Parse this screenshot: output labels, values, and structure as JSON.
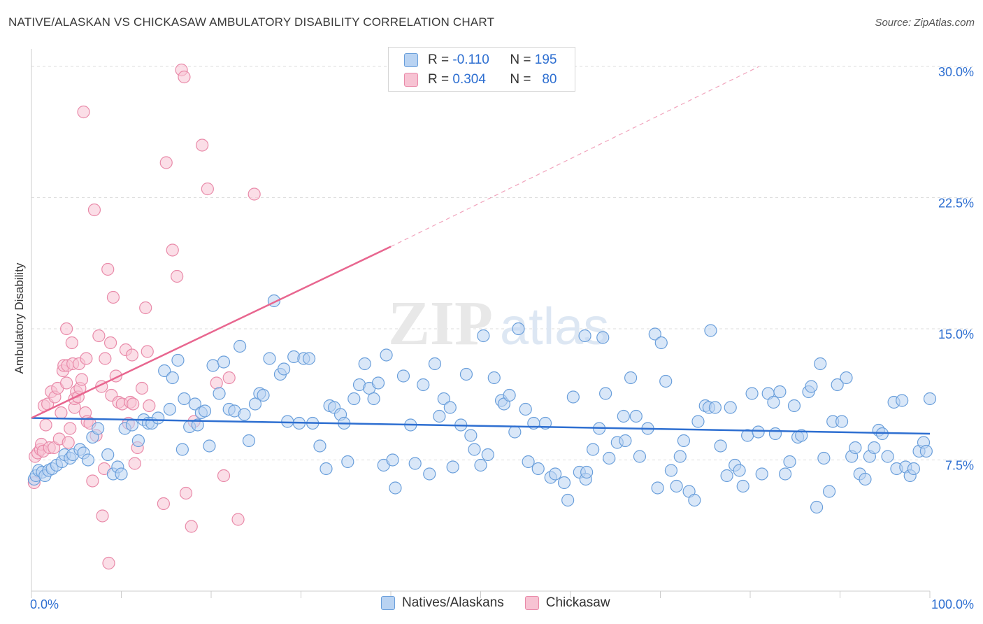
{
  "title": "NATIVE/ALASKAN VS CHICKASAW AMBULATORY DISABILITY CORRELATION CHART",
  "source": "Source: ZipAtlas.com",
  "watermark": {
    "zip": "ZIP",
    "atlas": "atlas"
  },
  "legend": {
    "r_label": "R =",
    "n_label": "N =",
    "series1": {
      "r": "-0.110",
      "n": "195"
    },
    "series2": {
      "r": "0.304",
      "n": "80"
    }
  },
  "colors": {
    "blue_fill": "#b9d3f2",
    "blue_stroke": "#6a9fdb",
    "blue_line": "#2e6fd1",
    "pink_fill": "#f7c3d3",
    "pink_stroke": "#e98aa9",
    "pink_line": "#e8668f",
    "axis_text": "#2e6fd1",
    "grid": "#dddddd"
  },
  "chart_data": {
    "type": "scatter",
    "title": "NATIVE/ALASKAN VS CHICKASAW AMBULATORY DISABILITY CORRELATION CHART",
    "xlabel": "",
    "ylabel": "Ambulatory Disability",
    "xlim": [
      0,
      100
    ],
    "ylim": [
      0,
      31
    ],
    "x_tick_labels": [
      "0.0%",
      "100.0%"
    ],
    "y_ticks": [
      7.5,
      15.0,
      22.5,
      30.0
    ],
    "y_tick_labels": [
      "7.5%",
      "15.0%",
      "22.5%",
      "30.0%"
    ],
    "series": [
      {
        "name": "Natives/Alaskans",
        "R": -0.11,
        "N": 195,
        "trend": {
          "x": [
            0,
            100
          ],
          "y": [
            9.9,
            9.0
          ],
          "dashed_from": null
        },
        "points": [
          [
            0.3,
            6.4
          ],
          [
            0.5,
            6.6
          ],
          [
            0.8,
            6.9
          ],
          [
            1.2,
            6.8
          ],
          [
            1.5,
            6.6
          ],
          [
            1.9,
            6.9
          ],
          [
            2.3,
            7.0
          ],
          [
            2.8,
            7.2
          ],
          [
            3.4,
            7.4
          ],
          [
            3.7,
            7.8
          ],
          [
            4.3,
            7.6
          ],
          [
            4.6,
            7.8
          ],
          [
            5.4,
            8.1
          ],
          [
            5.8,
            7.9
          ],
          [
            6.3,
            7.5
          ],
          [
            6.8,
            8.8
          ],
          [
            7.4,
            9.3
          ],
          [
            8.5,
            7.8
          ],
          [
            9.1,
            6.7
          ],
          [
            9.6,
            7.1
          ],
          [
            10.0,
            6.7
          ],
          [
            10.4,
            9.3
          ],
          [
            11.2,
            9.5
          ],
          [
            11.9,
            8.6
          ],
          [
            12.5,
            9.8
          ],
          [
            13.0,
            9.6
          ],
          [
            13.4,
            9.6
          ],
          [
            14.1,
            9.9
          ],
          [
            14.8,
            12.6
          ],
          [
            15.4,
            10.4
          ],
          [
            15.7,
            12.2
          ],
          [
            16.3,
            13.2
          ],
          [
            16.8,
            8.1
          ],
          [
            17.0,
            11.0
          ],
          [
            17.6,
            9.4
          ],
          [
            18.2,
            10.7
          ],
          [
            18.5,
            9.5
          ],
          [
            18.9,
            10.2
          ],
          [
            19.3,
            10.3
          ],
          [
            19.8,
            8.3
          ],
          [
            20.2,
            12.9
          ],
          [
            20.9,
            11.3
          ],
          [
            21.4,
            13.1
          ],
          [
            22.0,
            10.4
          ],
          [
            22.6,
            10.3
          ],
          [
            23.2,
            14.0
          ],
          [
            23.7,
            10.1
          ],
          [
            24.2,
            8.6
          ],
          [
            24.9,
            10.7
          ],
          [
            25.4,
            11.3
          ],
          [
            25.8,
            11.2
          ],
          [
            26.5,
            13.3
          ],
          [
            27.0,
            16.6
          ],
          [
            27.7,
            12.4
          ],
          [
            28.1,
            12.7
          ],
          [
            28.5,
            9.7
          ],
          [
            29.2,
            13.4
          ],
          [
            29.8,
            9.6
          ],
          [
            30.3,
            13.3
          ],
          [
            30.9,
            13.3
          ],
          [
            31.3,
            9.6
          ],
          [
            32.1,
            8.3
          ],
          [
            32.8,
            7.0
          ],
          [
            33.2,
            10.6
          ],
          [
            33.7,
            10.5
          ],
          [
            34.4,
            10.1
          ],
          [
            34.8,
            9.6
          ],
          [
            35.2,
            7.4
          ],
          [
            35.9,
            11.0
          ],
          [
            36.5,
            11.8
          ],
          [
            37.1,
            13.0
          ],
          [
            37.6,
            11.6
          ],
          [
            38.1,
            11.0
          ],
          [
            38.6,
            11.9
          ],
          [
            39.5,
            13.5
          ],
          [
            39.2,
            7.2
          ],
          [
            40.2,
            7.5
          ],
          [
            40.5,
            5.9
          ],
          [
            41.4,
            12.3
          ],
          [
            42.2,
            9.5
          ],
          [
            42.7,
            7.3
          ],
          [
            43.6,
            11.8
          ],
          [
            44.3,
            6.7
          ],
          [
            44.9,
            13.0
          ],
          [
            45.4,
            10.0
          ],
          [
            45.9,
            11.0
          ],
          [
            46.6,
            10.5
          ],
          [
            46.9,
            7.1
          ],
          [
            47.8,
            9.5
          ],
          [
            48.4,
            12.4
          ],
          [
            48.9,
            8.9
          ],
          [
            49.3,
            8.1
          ],
          [
            50.0,
            7.2
          ],
          [
            50.3,
            14.6
          ],
          [
            50.8,
            7.8
          ],
          [
            51.5,
            12.2
          ],
          [
            52.3,
            10.9
          ],
          [
            52.6,
            10.7
          ],
          [
            53.2,
            11.2
          ],
          [
            53.8,
            9.1
          ],
          [
            54.2,
            15.0
          ],
          [
            55.0,
            10.4
          ],
          [
            55.3,
            7.4
          ],
          [
            55.9,
            9.6
          ],
          [
            56.4,
            7.0
          ],
          [
            57.2,
            9.6
          ],
          [
            57.8,
            6.5
          ],
          [
            58.3,
            6.7
          ],
          [
            59.3,
            6.2
          ],
          [
            59.7,
            5.2
          ],
          [
            60.3,
            11.1
          ],
          [
            61.0,
            6.8
          ],
          [
            61.6,
            14.6
          ],
          [
            61.7,
            6.4
          ],
          [
            61.8,
            6.8
          ],
          [
            62.5,
            8.1
          ],
          [
            63.2,
            9.3
          ],
          [
            63.6,
            14.5
          ],
          [
            63.9,
            11.3
          ],
          [
            64.3,
            7.6
          ],
          [
            65.2,
            8.5
          ],
          [
            65.9,
            10.0
          ],
          [
            66.1,
            8.6
          ],
          [
            66.7,
            12.2
          ],
          [
            67.3,
            10.0
          ],
          [
            67.7,
            7.7
          ],
          [
            68.6,
            9.3
          ],
          [
            69.4,
            14.7
          ],
          [
            69.7,
            5.9
          ],
          [
            70.1,
            14.2
          ],
          [
            70.6,
            12.0
          ],
          [
            71.2,
            6.9
          ],
          [
            71.8,
            6.0
          ],
          [
            72.2,
            7.7
          ],
          [
            72.6,
            8.6
          ],
          [
            73.2,
            5.7
          ],
          [
            73.8,
            5.2
          ],
          [
            74.2,
            9.7
          ],
          [
            75.0,
            10.6
          ],
          [
            75.4,
            10.5
          ],
          [
            75.6,
            14.9
          ],
          [
            76.1,
            10.5
          ],
          [
            76.7,
            8.3
          ],
          [
            77.4,
            6.6
          ],
          [
            77.8,
            10.5
          ],
          [
            78.3,
            7.2
          ],
          [
            78.8,
            6.9
          ],
          [
            79.2,
            6.0
          ],
          [
            79.7,
            8.9
          ],
          [
            80.2,
            11.3
          ],
          [
            80.9,
            9.1
          ],
          [
            81.3,
            6.7
          ],
          [
            82.0,
            11.3
          ],
          [
            82.6,
            10.8
          ],
          [
            82.8,
            9.0
          ],
          [
            83.3,
            11.4
          ],
          [
            83.9,
            6.7
          ],
          [
            84.4,
            7.4
          ],
          [
            84.9,
            10.6
          ],
          [
            85.3,
            8.8
          ],
          [
            85.7,
            8.9
          ],
          [
            86.5,
            11.4
          ],
          [
            86.8,
            11.7
          ],
          [
            87.4,
            4.8
          ],
          [
            87.8,
            13.0
          ],
          [
            88.2,
            7.6
          ],
          [
            88.8,
            5.7
          ],
          [
            89.2,
            9.7
          ],
          [
            89.7,
            11.8
          ],
          [
            90.2,
            9.7
          ],
          [
            90.7,
            12.2
          ],
          [
            91.3,
            7.7
          ],
          [
            91.7,
            8.2
          ],
          [
            92.2,
            6.7
          ],
          [
            92.8,
            6.4
          ],
          [
            93.3,
            7.7
          ],
          [
            93.8,
            8.2
          ],
          [
            94.3,
            9.2
          ],
          [
            94.7,
            9.0
          ],
          [
            95.3,
            7.7
          ],
          [
            96.0,
            10.8
          ],
          [
            96.3,
            7.0
          ],
          [
            96.9,
            10.9
          ],
          [
            97.3,
            7.1
          ],
          [
            97.8,
            6.6
          ],
          [
            98.2,
            7.0
          ],
          [
            98.8,
            8.0
          ],
          [
            99.3,
            8.5
          ],
          [
            99.6,
            8.0
          ],
          [
            100.0,
            11.0
          ]
        ]
      },
      {
        "name": "Chickasaw",
        "R": 0.304,
        "N": 80,
        "trend": {
          "x": [
            0,
            40
          ],
          "y": [
            9.9,
            19.7
          ],
          "dashed_to": {
            "x": 81,
            "y": 30.0
          }
        },
        "points": [
          [
            0.3,
            6.2
          ],
          [
            0.4,
            7.7
          ],
          [
            0.7,
            7.9
          ],
          [
            1.0,
            8.1
          ],
          [
            1.1,
            8.4
          ],
          [
            1.3,
            8.0
          ],
          [
            1.4,
            10.6
          ],
          [
            1.6,
            9.5
          ],
          [
            1.8,
            10.7
          ],
          [
            2.0,
            8.2
          ],
          [
            2.2,
            11.4
          ],
          [
            2.5,
            8.2
          ],
          [
            2.6,
            11.1
          ],
          [
            2.9,
            11.6
          ],
          [
            3.1,
            8.7
          ],
          [
            3.3,
            10.2
          ],
          [
            3.5,
            12.6
          ],
          [
            3.6,
            12.9
          ],
          [
            3.9,
            11.9
          ],
          [
            3.9,
            15.0
          ],
          [
            4.0,
            12.9
          ],
          [
            4.1,
            8.5
          ],
          [
            4.3,
            9.3
          ],
          [
            4.5,
            14.2
          ],
          [
            4.6,
            13.0
          ],
          [
            4.8,
            10.5
          ],
          [
            4.8,
            11.0
          ],
          [
            5.0,
            11.4
          ],
          [
            5.2,
            11.1
          ],
          [
            5.3,
            13.0
          ],
          [
            5.4,
            11.6
          ],
          [
            5.6,
            12.1
          ],
          [
            5.8,
            27.4
          ],
          [
            6.0,
            10.2
          ],
          [
            6.1,
            13.3
          ],
          [
            6.2,
            9.7
          ],
          [
            6.5,
            9.6
          ],
          [
            6.8,
            6.3
          ],
          [
            7.0,
            21.8
          ],
          [
            7.2,
            8.9
          ],
          [
            7.5,
            14.6
          ],
          [
            7.8,
            11.7
          ],
          [
            7.9,
            4.3
          ],
          [
            8.1,
            7.0
          ],
          [
            8.2,
            13.3
          ],
          [
            8.5,
            18.4
          ],
          [
            8.6,
            1.6
          ],
          [
            8.8,
            14.2
          ],
          [
            8.9,
            11.2
          ],
          [
            9.1,
            16.8
          ],
          [
            9.4,
            12.3
          ],
          [
            9.7,
            10.8
          ],
          [
            10.1,
            10.7
          ],
          [
            10.5,
            13.8
          ],
          [
            10.8,
            9.6
          ],
          [
            11.0,
            10.8
          ],
          [
            11.2,
            13.5
          ],
          [
            11.3,
            10.7
          ],
          [
            11.5,
            7.3
          ],
          [
            11.8,
            8.2
          ],
          [
            12.3,
            11.6
          ],
          [
            12.7,
            16.2
          ],
          [
            12.9,
            13.7
          ],
          [
            13.1,
            10.6
          ],
          [
            14.7,
            5.0
          ],
          [
            15.0,
            24.5
          ],
          [
            15.7,
            19.5
          ],
          [
            16.2,
            18.0
          ],
          [
            16.7,
            29.8
          ],
          [
            17.0,
            29.4
          ],
          [
            17.2,
            5.6
          ],
          [
            17.8,
            3.7
          ],
          [
            18.1,
            9.7
          ],
          [
            19.0,
            25.5
          ],
          [
            19.6,
            23.0
          ],
          [
            20.6,
            11.9
          ],
          [
            21.4,
            6.6
          ],
          [
            22.0,
            12.2
          ],
          [
            23.0,
            4.1
          ],
          [
            24.8,
            22.7
          ]
        ]
      }
    ],
    "legend_entries": [
      "Natives/Alaskans",
      "Chickasaw"
    ]
  }
}
